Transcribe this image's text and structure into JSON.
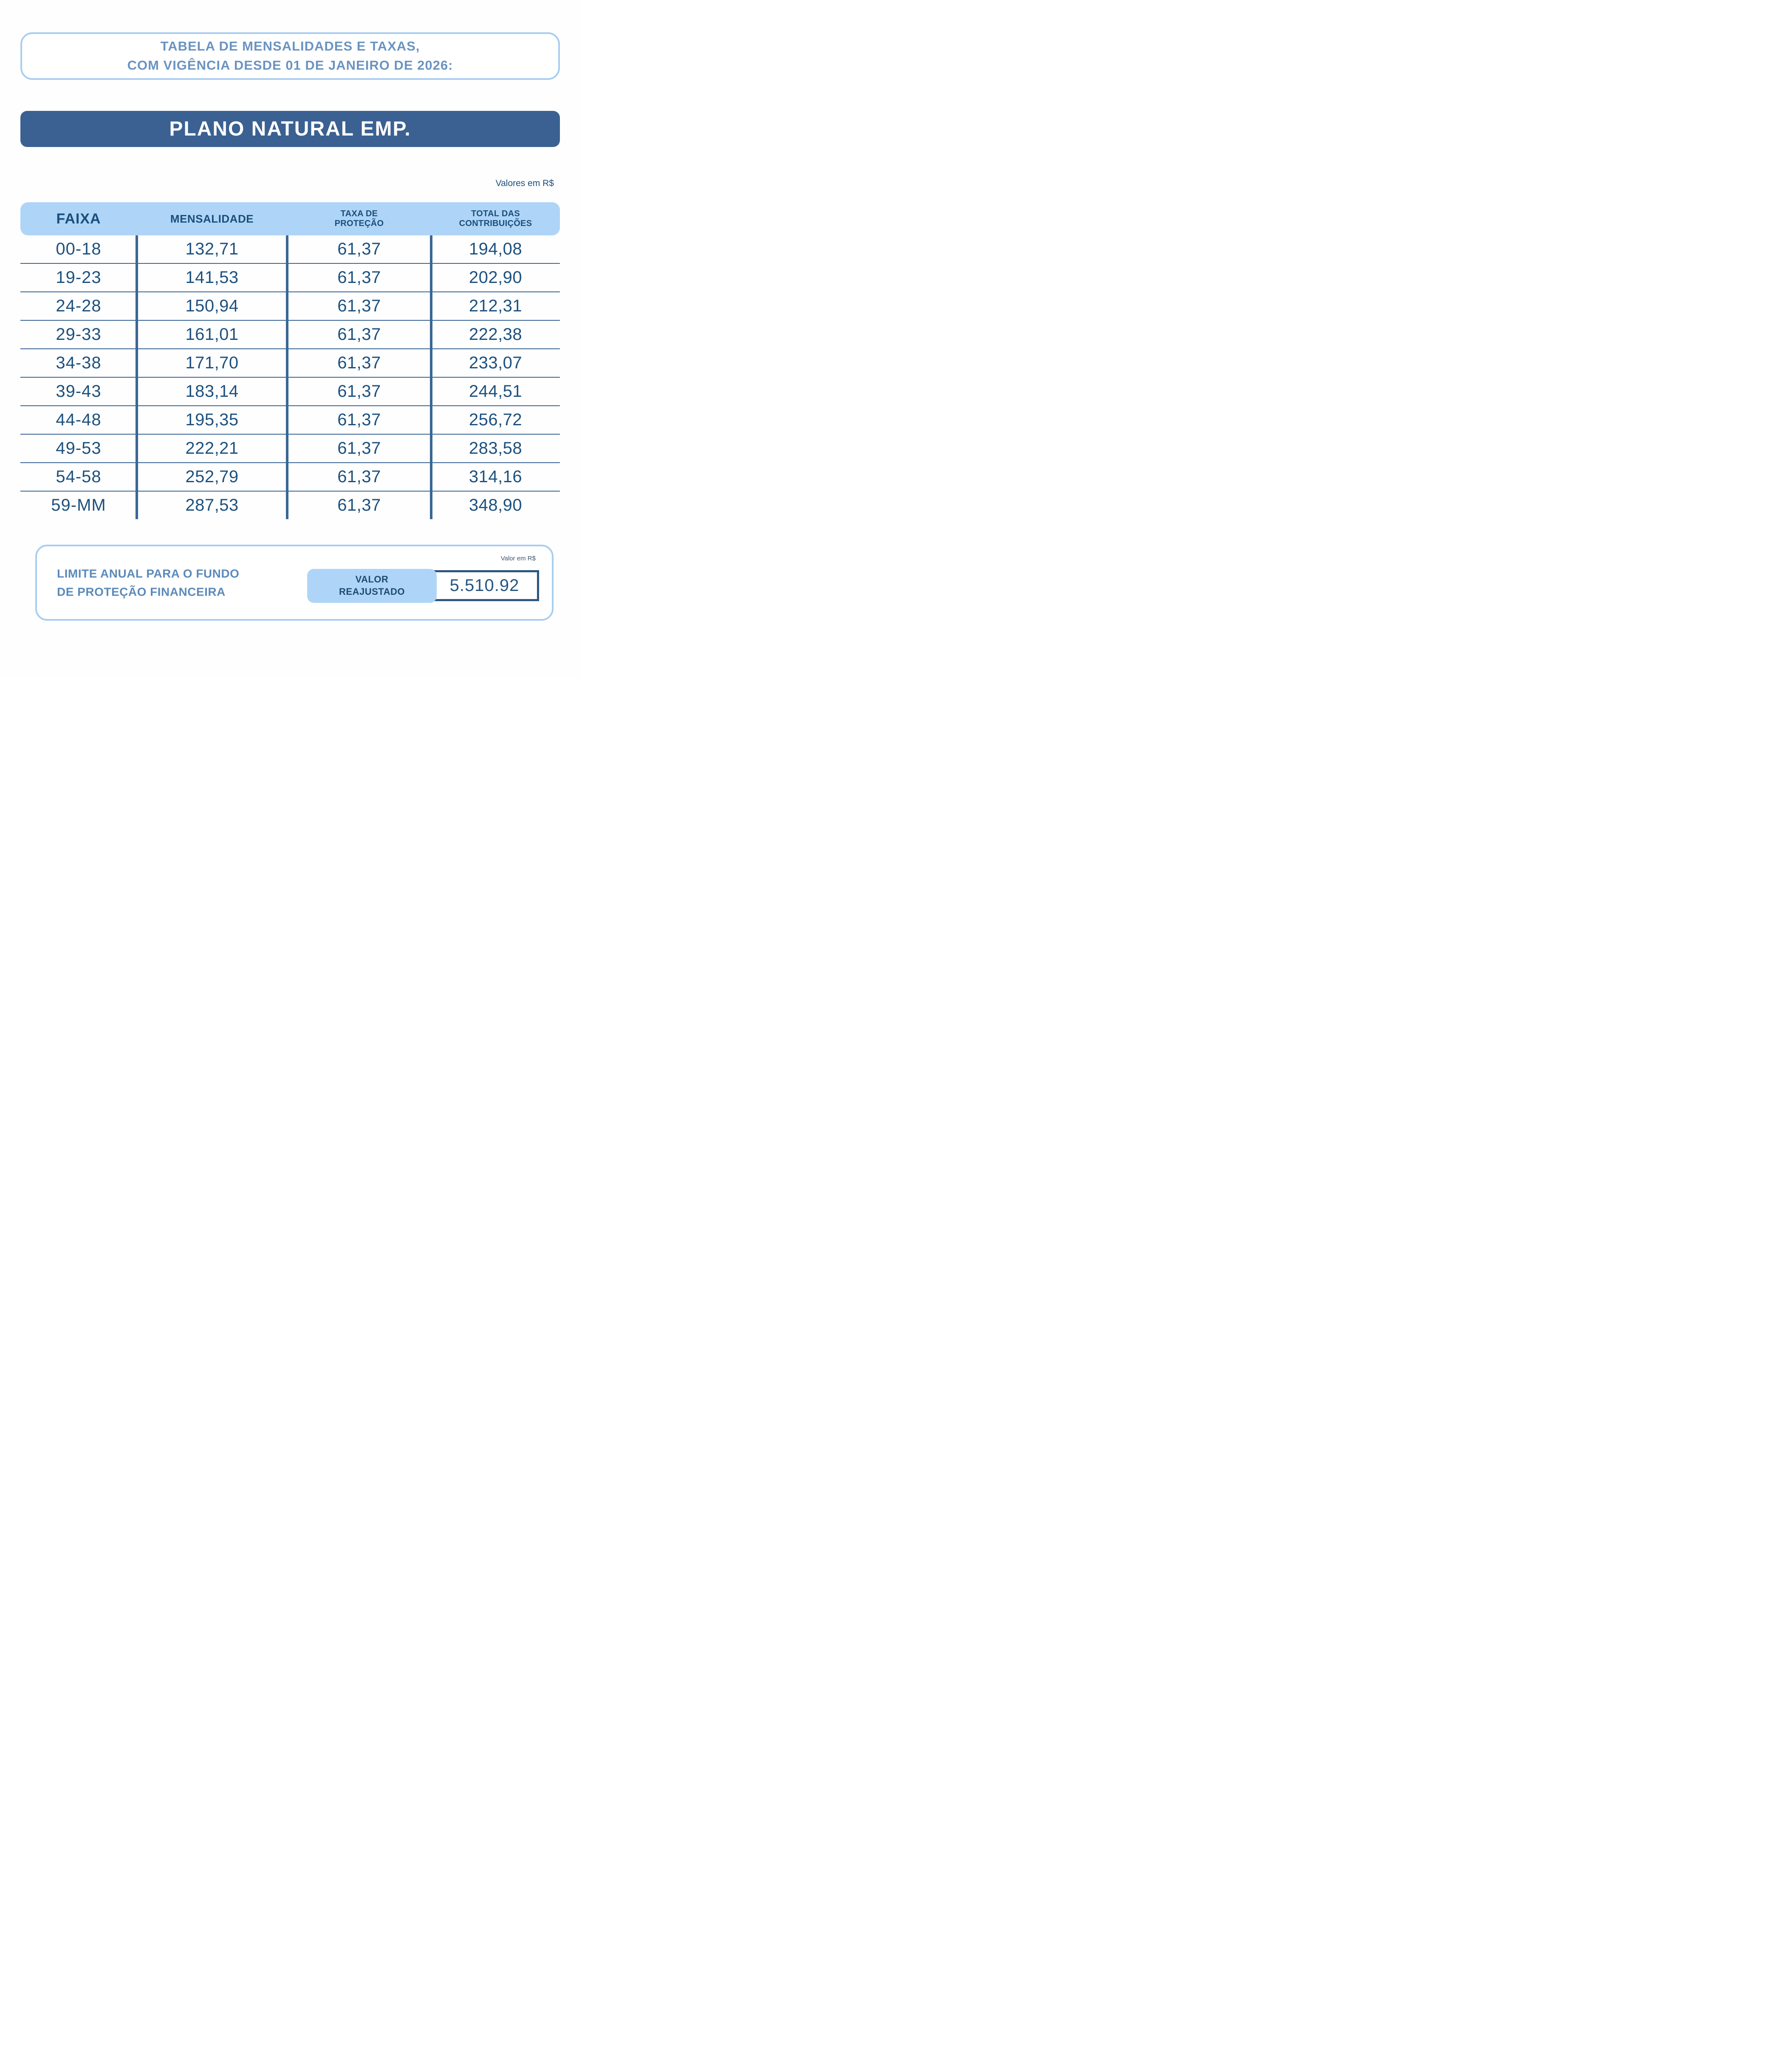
{
  "top_box": {
    "title_line1": "TABELA DE MENSALIDADES E TAXAS,",
    "title_line2": "COM VIGÊNCIA DESDE 01 DE JANEIRO DE 2026:"
  },
  "plan_banner": {
    "label": "PLANO NATURAL EMP."
  },
  "currency_note": "Valores em R$",
  "table": {
    "headers": [
      {
        "line1": "FAIXA",
        "line2": ""
      },
      {
        "line1": "MENSALIDADE",
        "line2": ""
      },
      {
        "line1": "TAXA DE",
        "line2": "PROTEÇÃO"
      },
      {
        "line1": "TOTAL DAS",
        "line2": "CONTRIBUIÇÕES"
      }
    ],
    "rows": [
      {
        "faixa": "00-18",
        "mensalidade": "132,71",
        "taxa": "61,37",
        "total": "194,08"
      },
      {
        "faixa": "19-23",
        "mensalidade": "141,53",
        "taxa": "61,37",
        "total": "202,90"
      },
      {
        "faixa": "24-28",
        "mensalidade": "150,94",
        "taxa": "61,37",
        "total": "212,31"
      },
      {
        "faixa": "29-33",
        "mensalidade": "161,01",
        "taxa": "61,37",
        "total": "222,38"
      },
      {
        "faixa": "34-38",
        "mensalidade": "171,70",
        "taxa": "61,37",
        "total": "233,07"
      },
      {
        "faixa": "39-43",
        "mensalidade": "183,14",
        "taxa": "61,37",
        "total": "244,51"
      },
      {
        "faixa": "44-48",
        "mensalidade": "195,35",
        "taxa": "61,37",
        "total": "256,72"
      },
      {
        "faixa": "49-53",
        "mensalidade": "222,21",
        "taxa": "61,37",
        "total": "283,58"
      },
      {
        "faixa": "54-58",
        "mensalidade": "252,79",
        "taxa": "61,37",
        "total": "314,16"
      },
      {
        "faixa": "59-MM",
        "mensalidade": "287,53",
        "taxa": "61,37",
        "total": "348,90"
      }
    ]
  },
  "footer_box": {
    "label_line1": "LIMITE ANUAL PARA O FUNDO",
    "label_line2": "DE PROTEÇÃO FINANCEIRA",
    "currency_note": "Valor em R$",
    "value_label_line1": "VALOR",
    "value_label_line2": "REAJUSTADO",
    "value": "5.510.92"
  },
  "colors": {
    "light_blue_border": "#a9cdf0",
    "header_band_blue": "#aed5f7",
    "banner_blue": "#3a6191",
    "steel_blue_text": "#6a93c1",
    "steel_blue_text_footer": "#5c8ab9",
    "navy_text": "#1d517f",
    "grid_line": "#3a6695",
    "value_box_border": "#2d5781"
  }
}
